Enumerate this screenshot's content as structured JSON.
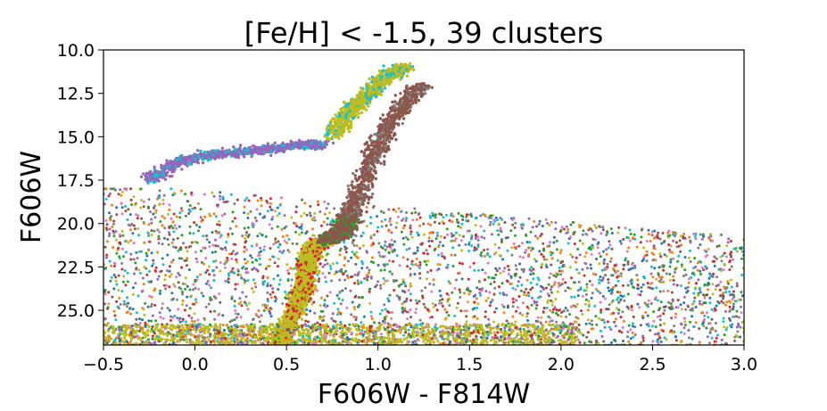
{
  "chart_data": {
    "type": "scatter",
    "title": "[Fe/H] < -1.5, 39 clusters",
    "xlabel": "F606W - F814W",
    "ylabel": "F606W",
    "xlim": [
      -0.5,
      3.0
    ],
    "ylim": [
      27.0,
      10.0
    ],
    "y_inverted": true,
    "xticks": [
      -0.5,
      0.0,
      0.5,
      1.0,
      1.5,
      2.0,
      2.5,
      3.0
    ],
    "xtick_labels": [
      "−0.5",
      "0.0",
      "0.5",
      "1.0",
      "1.5",
      "2.0",
      "2.5",
      "3.0"
    ],
    "yticks": [
      10.0,
      12.5,
      15.0,
      17.5,
      20.0,
      22.5,
      25.0
    ],
    "ytick_labels": [
      "10.0",
      "12.5",
      "15.0",
      "17.5",
      "20.0",
      "22.5",
      "25.0"
    ],
    "grid": false,
    "legend": "none",
    "palette": [
      "#1f77b4",
      "#ff7f0e",
      "#2ca02c",
      "#d62728",
      "#9467bd",
      "#8c564b",
      "#e377c2",
      "#7f7f7f",
      "#bcbd22",
      "#17becf"
    ],
    "approximate_features": [
      {
        "feature": "main sequence",
        "color": "#bcbd22",
        "points": [
          [
            0.45,
            27.0
          ],
          [
            0.55,
            25.0
          ],
          [
            0.6,
            23.5
          ],
          [
            0.62,
            22.0
          ],
          [
            0.66,
            21.3
          ],
          [
            0.72,
            21.0
          ]
        ]
      },
      {
        "feature": "subgiant branch",
        "color": "#8c564b",
        "points": [
          [
            0.72,
            21.0
          ],
          [
            0.8,
            20.5
          ],
          [
            0.85,
            19.5
          ]
        ]
      },
      {
        "feature": "red giant branch",
        "color": "#8c564b",
        "points": [
          [
            0.85,
            19.5
          ],
          [
            0.9,
            18.0
          ],
          [
            0.98,
            16.0
          ],
          [
            1.05,
            14.5
          ],
          [
            1.15,
            13.0
          ],
          [
            1.25,
            12.0
          ]
        ]
      },
      {
        "feature": "horizontal branch",
        "color": "#9467bd",
        "points": [
          [
            -0.25,
            17.5
          ],
          [
            -0.1,
            16.5
          ],
          [
            0.1,
            16.0
          ],
          [
            0.35,
            15.8
          ],
          [
            0.55,
            15.5
          ],
          [
            0.7,
            15.5
          ]
        ]
      },
      {
        "feature": "asymptotic giant branch",
        "color": "#bcbd22",
        "points": [
          [
            0.75,
            15.0
          ],
          [
            0.85,
            13.5
          ],
          [
            0.95,
            12.5
          ],
          [
            1.05,
            11.5
          ],
          [
            1.15,
            11.0
          ]
        ]
      },
      {
        "feature": "field scatter",
        "color": "mixed",
        "x_range": [
          -0.5,
          3.0
        ],
        "y_range": [
          18.0,
          27.0
        ]
      }
    ]
  }
}
